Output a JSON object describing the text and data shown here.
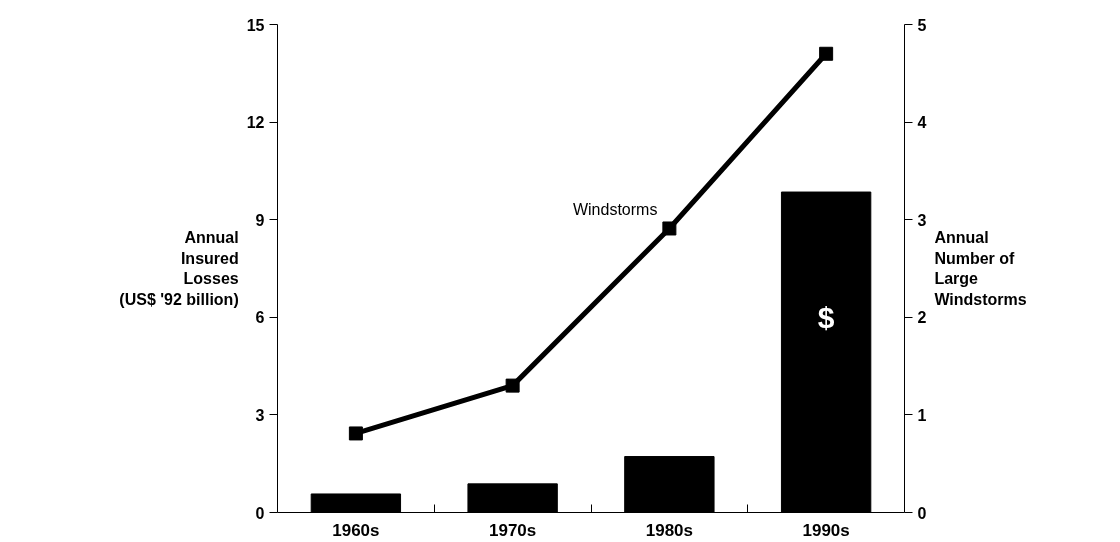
{
  "chart_data": {
    "type": "bar",
    "categories": [
      "1960s",
      "1970s",
      "1980s",
      "1990s"
    ],
    "series": [
      {
        "color": "#000000",
        "values": [
          0.57,
          0.88,
          1.72,
          9.85
        ]
      },
      {
        "type": "line",
        "name": "Windstorms",
        "axis": "y2",
        "color": "#000000",
        "values": [
          0.81,
          1.3,
          2.91,
          4.7
        ]
      }
    ],
    "ylabel": "Annual\nInsured\nLosses\n(US$ '92 billion)",
    "y2label": "Annual\nNumber of\nLarge\nWindstorms",
    "ylim": [
      0,
      15
    ],
    "yticks": [
      0,
      3,
      6,
      9,
      12,
      15
    ],
    "y2lim": [
      0,
      5
    ],
    "y2ticks": [
      0,
      1,
      2,
      3,
      4,
      5
    ],
    "annotations": [
      "$"
    ],
    "grid": false,
    "marker": "square",
    "line_style": "solid"
  }
}
